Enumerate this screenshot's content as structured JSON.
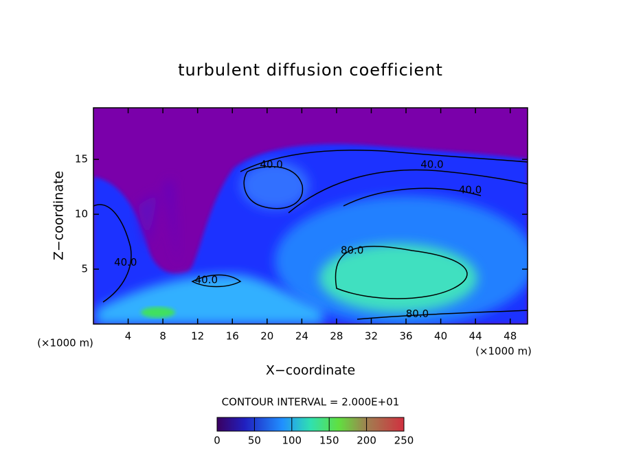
{
  "chart_data": {
    "type": "contour",
    "title": "turbulent diffusion coefficient",
    "x_label": "X−coordinate",
    "y_label": "Z−coordinate",
    "x_unit": "(×1000 m)",
    "xlim": [
      0,
      50
    ],
    "ylim": [
      0,
      19.7
    ],
    "xticks": [
      4,
      8,
      12,
      16,
      20,
      24,
      28,
      32,
      36,
      40,
      44,
      48
    ],
    "yticks": [
      5,
      10,
      15
    ],
    "contour_interval": "CONTOUR INTERVAL = 2.000E+01",
    "contour_labels": [
      {
        "value": 40,
        "label": "40.0",
        "x": 20.5,
        "y": 14.5
      },
      {
        "value": 40,
        "label": "40.0",
        "x": 39,
        "y": 14.5
      },
      {
        "value": 40,
        "label": "40.0",
        "x": 43.4,
        "y": 12.2
      },
      {
        "value": 80,
        "label": "80.0",
        "x": 29.8,
        "y": 6.7
      },
      {
        "value": 80,
        "label": "80.0",
        "x": 37.3,
        "y": 0.9
      },
      {
        "value": 40,
        "label": "40.0",
        "x": 3.7,
        "y": 5.6
      },
      {
        "value": 40,
        "label": "40.0",
        "x": 13,
        "y": 4
      }
    ],
    "colorbar_lim": [
      0,
      250
    ],
    "colorbar_ticks": [
      0,
      50,
      100,
      150,
      200,
      250
    ]
  }
}
